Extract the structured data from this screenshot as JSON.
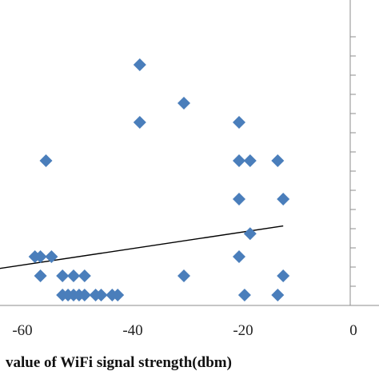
{
  "chart_data": {
    "type": "scatter",
    "xlabel": "value of WiFi signal strength(dbm)",
    "xlim": [
      -70,
      0
    ],
    "ylim": [
      0,
      14
    ],
    "x_ticks": [
      -60,
      -40,
      -20,
      0
    ],
    "x_tick_labels": [
      "-60",
      "-40",
      "-20",
      "0"
    ],
    "grid": false,
    "legend": "none",
    "marker_color": "#4a7ebb",
    "trendline_color": "#000000",
    "points": [
      {
        "x": -38,
        "y": 12
      },
      {
        "x": -30,
        "y": 10
      },
      {
        "x": -38,
        "y": 9
      },
      {
        "x": -20,
        "y": 9
      },
      {
        "x": -55,
        "y": 7
      },
      {
        "x": -20,
        "y": 7
      },
      {
        "x": -18,
        "y": 7
      },
      {
        "x": -13,
        "y": 7
      },
      {
        "x": -20,
        "y": 5
      },
      {
        "x": -12,
        "y": 5
      },
      {
        "x": -18,
        "y": 3.2
      },
      {
        "x": -57,
        "y": 2
      },
      {
        "x": -56,
        "y": 2
      },
      {
        "x": -54,
        "y": 2
      },
      {
        "x": -20,
        "y": 2
      },
      {
        "x": -56,
        "y": 1
      },
      {
        "x": -52,
        "y": 1
      },
      {
        "x": -50,
        "y": 1
      },
      {
        "x": -48,
        "y": 1
      },
      {
        "x": -30,
        "y": 1
      },
      {
        "x": -12,
        "y": 1
      },
      {
        "x": -52,
        "y": 0
      },
      {
        "x": -51,
        "y": 0
      },
      {
        "x": -50,
        "y": 0
      },
      {
        "x": -49,
        "y": 0
      },
      {
        "x": -48,
        "y": 0
      },
      {
        "x": -46,
        "y": 0
      },
      {
        "x": -45,
        "y": 0
      },
      {
        "x": -43,
        "y": 0
      },
      {
        "x": -42,
        "y": 0
      },
      {
        "x": -19,
        "y": 0
      },
      {
        "x": -13,
        "y": 0
      }
    ],
    "trendline": {
      "x": [
        -70,
        -12
      ],
      "y": [
        1.1,
        3.6
      ]
    }
  }
}
